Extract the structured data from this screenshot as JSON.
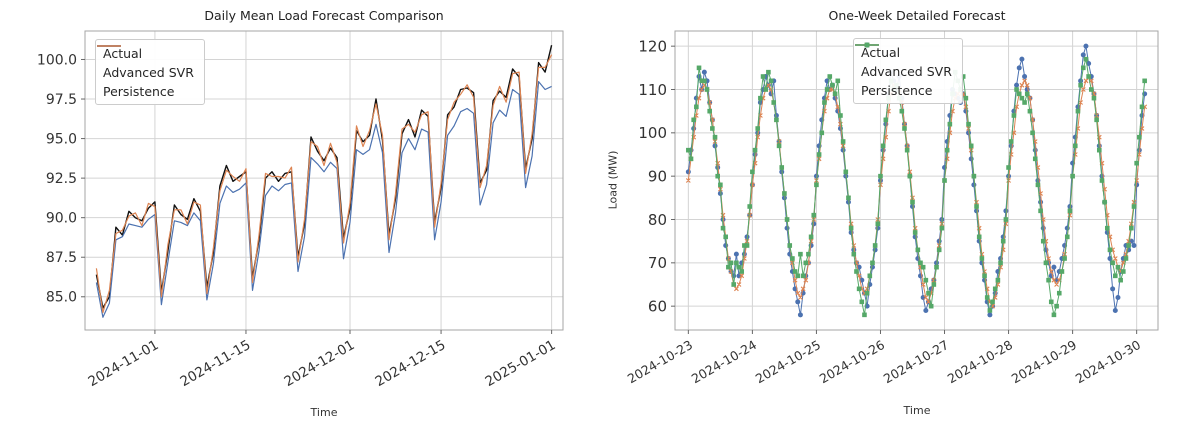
{
  "figure": {
    "background": "#ffffff",
    "grid_color": "#d4d4d4",
    "spine_color": "#a6a6a6",
    "tick_text_color": "#333333"
  },
  "chart_data": [
    {
      "type": "line",
      "title": "Daily Mean Load Forecast Comparison",
      "xlabel": "Time",
      "ylabel": "",
      "grid": true,
      "legend_position": "upper-left",
      "x_start_date": "2024-10-23",
      "x_unit": "day",
      "x_tick_positions": [
        9,
        23,
        39,
        53,
        70
      ],
      "x_tick_labels": [
        "2024-11-01",
        "2024-11-15",
        "2024-12-01",
        "2024-12-15",
        "2025-01-01"
      ],
      "y_ticks": [
        85.0,
        87.5,
        90.0,
        92.5,
        95.0,
        97.5,
        100.0
      ],
      "y_tick_labels": [
        "85.0",
        "87.5",
        "90.0",
        "92.5",
        "95.0",
        "97.5",
        "100.0"
      ],
      "ylim": [
        82.9,
        101.8
      ],
      "xlim": [
        -1.75,
        71.75
      ],
      "series": [
        {
          "name": "Actual",
          "color": "#111111",
          "marker": "none",
          "linewidth": 1.4,
          "values": [
            86.4,
            84.3,
            85.0,
            89.4,
            88.9,
            90.4,
            90.0,
            89.8,
            90.6,
            91.0,
            85.3,
            87.9,
            90.8,
            90.2,
            89.9,
            91.2,
            90.4,
            85.6,
            87.8,
            92.0,
            93.3,
            92.3,
            92.6,
            92.9,
            86.2,
            88.6,
            92.5,
            92.9,
            92.3,
            92.8,
            92.9,
            87.5,
            89.6,
            95.1,
            94.2,
            93.6,
            94.4,
            93.8,
            88.7,
            90.6,
            95.5,
            94.8,
            95.2,
            97.5,
            94.9,
            88.9,
            91.2,
            95.3,
            96.2,
            95.1,
            96.8,
            96.4,
            89.7,
            91.9,
            96.5,
            97.0,
            98.1,
            98.2,
            97.9,
            92.2,
            93.0,
            97.4,
            98.0,
            97.6,
            99.4,
            98.9,
            93.1,
            95.0,
            99.8,
            99.2,
            100.9
          ]
        },
        {
          "name": "Advanced SVR",
          "color": "#4c72b0",
          "marker": "none",
          "linewidth": 1.2,
          "values": [
            85.9,
            83.7,
            84.6,
            88.6,
            88.8,
            89.6,
            89.5,
            89.4,
            89.9,
            90.2,
            84.5,
            87.2,
            89.8,
            89.7,
            89.5,
            90.3,
            89.8,
            84.8,
            87.1,
            90.9,
            92.0,
            91.6,
            91.8,
            92.2,
            85.4,
            87.9,
            91.4,
            92.0,
            91.7,
            92.1,
            92.2,
            86.6,
            88.8,
            93.8,
            93.4,
            92.9,
            93.5,
            93.1,
            87.4,
            89.7,
            94.3,
            94.0,
            94.3,
            95.9,
            94.1,
            87.8,
            90.3,
            94.1,
            95.0,
            94.3,
            95.6,
            95.4,
            88.6,
            91.0,
            95.2,
            95.8,
            96.7,
            96.9,
            96.6,
            90.8,
            92.1,
            96.0,
            96.8,
            96.4,
            98.1,
            97.8,
            91.9,
            93.9,
            98.6,
            98.1,
            98.3
          ]
        },
        {
          "name": "Persistence",
          "color": "#dd8452",
          "marker": "none",
          "linewidth": 1.2,
          "values": [
            86.8,
            84.0,
            85.4,
            89.0,
            89.2,
            90.1,
            90.3,
            89.5,
            90.9,
            90.7,
            85.0,
            88.3,
            90.5,
            90.5,
            89.6,
            91.0,
            90.8,
            85.2,
            88.1,
            91.7,
            93.0,
            92.6,
            92.3,
            93.1,
            85.9,
            88.9,
            92.8,
            92.6,
            92.6,
            92.5,
            93.2,
            87.2,
            89.9,
            94.8,
            94.5,
            93.3,
            94.7,
            93.5,
            88.4,
            90.9,
            95.8,
            94.5,
            95.5,
            97.2,
            95.2,
            88.6,
            91.5,
            95.6,
            95.9,
            95.4,
            96.5,
            96.7,
            89.4,
            92.2,
            96.2,
            97.3,
            97.8,
            98.4,
            97.6,
            91.9,
            93.3,
            97.1,
            98.3,
            97.3,
            99.1,
            99.2,
            92.8,
            95.3,
            99.5,
            99.5,
            100.3
          ]
        }
      ]
    },
    {
      "type": "line",
      "title": "One-Week Detailed Forecast",
      "xlabel": "Time",
      "ylabel": "Load (MW)",
      "grid": true,
      "legend_position": "upper-center",
      "x_start_date": "2024-10-23 00:00",
      "x_unit": "hour",
      "x_tick_positions": [
        0,
        24,
        48,
        72,
        96,
        120,
        144,
        168
      ],
      "x_tick_labels": [
        "2024-10-23",
        "2024-10-24",
        "2024-10-25",
        "2024-10-26",
        "2024-10-27",
        "2024-10-28",
        "2024-10-29",
        "2024-10-30"
      ],
      "y_ticks": [
        60,
        70,
        80,
        90,
        100,
        110,
        120
      ],
      "y_tick_labels": [
        "60",
        "70",
        "80",
        "90",
        "100",
        "110",
        "120"
      ],
      "ylim": [
        54.5,
        123.5
      ],
      "xlim": [
        -5,
        176
      ],
      "series": [
        {
          "name": "Actual",
          "color": "#4c72b0",
          "marker": "circle",
          "linewidth": 1,
          "values": [
            91,
            96,
            101,
            108,
            113,
            110,
            114,
            112,
            107,
            103,
            97,
            92,
            86,
            80,
            74,
            71,
            68,
            67,
            72,
            67,
            70,
            72,
            76,
            81,
            88,
            95,
            100,
            107,
            110,
            113,
            111,
            109,
            112,
            104,
            98,
            91,
            85,
            78,
            72,
            68,
            64,
            61,
            58,
            63,
            67,
            70,
            74,
            79,
            90,
            97,
            103,
            108,
            112,
            110,
            111,
            108,
            105,
            101,
            96,
            90,
            84,
            77,
            73,
            70,
            69,
            66,
            63,
            60,
            65,
            69,
            73,
            78,
            89,
            96,
            102,
            109,
            114,
            112,
            110,
            113,
            108,
            102,
            97,
            90,
            83,
            76,
            71,
            67,
            62,
            59,
            61,
            64,
            66,
            70,
            75,
            80,
            92,
            98,
            104,
            110,
            109,
            108,
            107,
            109,
            105,
            100,
            94,
            88,
            82,
            75,
            70,
            66,
            61,
            58,
            60,
            63,
            68,
            71,
            76,
            82,
            90,
            97,
            105,
            111,
            115,
            117,
            113,
            110,
            108,
            103,
            96,
            89,
            84,
            78,
            73,
            70,
            67,
            69,
            66,
            68,
            71,
            74,
            78,
            83,
            93,
            99,
            106,
            112,
            118,
            120,
            116,
            113,
            109,
            104,
            97,
            90,
            84,
            77,
            71,
            64,
            59,
            62,
            68,
            71,
            74,
            73,
            75,
            74,
            88,
            96,
            104,
            109
          ]
        },
        {
          "name": "Advanced SVR",
          "color": "#dd8452",
          "marker": "x",
          "linewidth": 1,
          "values": [
            89,
            94,
            99,
            104,
            108,
            110,
            111,
            110,
            107,
            103,
            98,
            93,
            87,
            81,
            76,
            71,
            68,
            65,
            64,
            65,
            67,
            71,
            75,
            81,
            88,
            93,
            99,
            104,
            108,
            110,
            111,
            110,
            107,
            103,
            98,
            92,
            86,
            80,
            74,
            70,
            66,
            63,
            62,
            64,
            66,
            70,
            75,
            80,
            89,
            94,
            100,
            105,
            108,
            110,
            110,
            109,
            106,
            102,
            97,
            91,
            85,
            79,
            74,
            70,
            67,
            64,
            63,
            64,
            67,
            70,
            74,
            80,
            88,
            94,
            99,
            105,
            109,
            111,
            111,
            110,
            107,
            102,
            97,
            91,
            85,
            78,
            73,
            69,
            65,
            62,
            61,
            63,
            66,
            69,
            74,
            79,
            89,
            94,
            100,
            105,
            108,
            109,
            110,
            109,
            106,
            101,
            96,
            90,
            84,
            78,
            72,
            68,
            64,
            61,
            60,
            62,
            65,
            69,
            73,
            79,
            89,
            95,
            100,
            106,
            109,
            111,
            112,
            111,
            108,
            103,
            98,
            92,
            86,
            80,
            75,
            71,
            68,
            66,
            65,
            66,
            68,
            72,
            76,
            81,
            90,
            95,
            101,
            107,
            110,
            112,
            113,
            112,
            109,
            104,
            99,
            93,
            87,
            81,
            76,
            73,
            71,
            69,
            68,
            70,
            72,
            75,
            79,
            84,
            89,
            95,
            101,
            106
          ]
        },
        {
          "name": "Persistence",
          "color": "#55a868",
          "marker": "square",
          "linewidth": 1,
          "values": [
            96,
            94,
            103,
            106,
            115,
            112,
            112,
            110,
            105,
            101,
            99,
            90,
            88,
            78,
            76,
            69,
            70,
            65,
            70,
            69,
            68,
            74,
            74,
            83,
            91,
            96,
            101,
            108,
            113,
            110,
            114,
            112,
            107,
            103,
            97,
            92,
            86,
            80,
            74,
            71,
            68,
            67,
            72,
            67,
            70,
            72,
            76,
            81,
            88,
            95,
            100,
            107,
            110,
            113,
            111,
            109,
            112,
            104,
            98,
            91,
            85,
            78,
            72,
            68,
            64,
            61,
            58,
            63,
            67,
            70,
            74,
            79,
            90,
            97,
            103,
            108,
            112,
            110,
            111,
            108,
            105,
            101,
            96,
            90,
            84,
            77,
            73,
            70,
            69,
            66,
            63,
            60,
            65,
            69,
            73,
            78,
            89,
            96,
            102,
            109,
            114,
            112,
            110,
            113,
            108,
            102,
            97,
            90,
            83,
            76,
            71,
            67,
            62,
            59,
            61,
            64,
            66,
            70,
            75,
            80,
            92,
            98,
            104,
            110,
            109,
            108,
            107,
            109,
            105,
            100,
            94,
            88,
            82,
            75,
            70,
            66,
            61,
            58,
            60,
            63,
            68,
            71,
            76,
            82,
            90,
            97,
            105,
            111,
            115,
            117,
            113,
            110,
            108,
            103,
            96,
            89,
            84,
            78,
            73,
            70,
            67,
            69,
            66,
            68,
            71,
            74,
            78,
            83,
            93,
            99,
            106,
            112
          ]
        }
      ]
    }
  ]
}
